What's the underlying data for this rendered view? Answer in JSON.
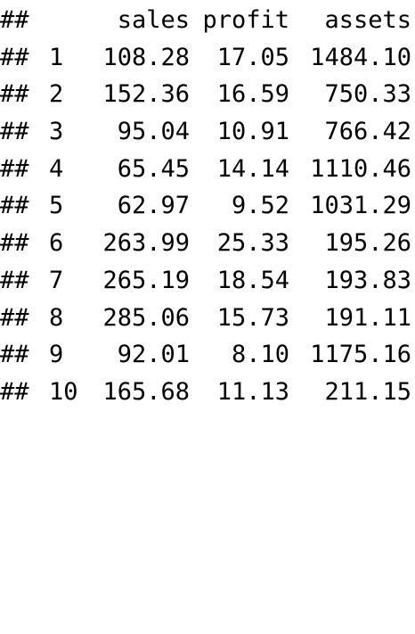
{
  "output": {
    "prefix": "##",
    "columns": [
      "sales",
      "profit",
      "assets"
    ],
    "rows": [
      {
        "name": "1",
        "values": [
          "108.28",
          "17.05",
          "1484.10"
        ]
      },
      {
        "name": "2",
        "values": [
          "152.36",
          "16.59",
          "750.33"
        ]
      },
      {
        "name": "3",
        "values": [
          "95.04",
          "10.91",
          "766.42"
        ]
      },
      {
        "name": "4",
        "values": [
          "65.45",
          "14.14",
          "1110.46"
        ]
      },
      {
        "name": "5",
        "values": [
          "62.97",
          "9.52",
          "1031.29"
        ]
      },
      {
        "name": "6",
        "values": [
          "263.99",
          "25.33",
          "195.26"
        ]
      },
      {
        "name": "7",
        "values": [
          "265.19",
          "18.54",
          "193.83"
        ]
      },
      {
        "name": "8",
        "values": [
          "285.06",
          "15.73",
          "191.11"
        ]
      },
      {
        "name": "9",
        "values": [
          "92.01",
          "8.10",
          "1175.16"
        ]
      },
      {
        "name": "10",
        "values": [
          "165.68",
          "11.13",
          "211.15"
        ]
      }
    ]
  }
}
